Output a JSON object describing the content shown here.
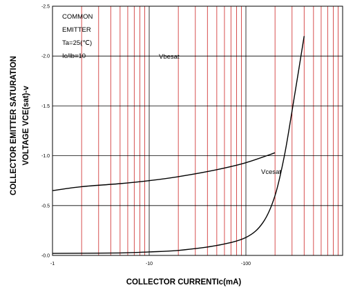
{
  "chart_data": {
    "type": "line",
    "title": "",
    "xlabel": "COLLECTOR CURRENTIc(mA)",
    "ylabel": "COLLECTOR EMITTER SATURATION",
    "ylabel_line2": "VOLTAGE VCE(sat)-v",
    "x_scale": "log",
    "xlim": [
      -1,
      -1000
    ],
    "ylim": [
      0,
      -2.5
    ],
    "x_ticks": [
      {
        "value": -1,
        "label": "-1"
      },
      {
        "value": -10,
        "label": "-10"
      },
      {
        "value": -100,
        "label": "-100"
      }
    ],
    "y_ticks": [
      {
        "value": 0,
        "label": "-0.0"
      },
      {
        "value": -0.5,
        "label": "-0.5"
      },
      {
        "value": -1.0,
        "label": "-1.0"
      },
      {
        "value": -1.5,
        "label": "-1.5"
      },
      {
        "value": -2.0,
        "label": "-2.0"
      },
      {
        "value": -2.5,
        "label": "-2.5"
      }
    ],
    "grid": true,
    "annotations": [
      "COMMON",
      "EMITTER",
      "Ta=25(℃)",
      "Ic/Ib=10"
    ],
    "series": [
      {
        "name": "Vbesat",
        "x": [
          -1,
          -2,
          -5,
          -10,
          -20,
          -50,
          -100,
          -200
        ],
        "y": [
          -0.65,
          -0.69,
          -0.72,
          -0.75,
          -0.79,
          -0.86,
          -0.93,
          -1.03
        ]
      },
      {
        "name": "Vcesat",
        "x": [
          -1,
          -5,
          -10,
          -20,
          -50,
          -100,
          -150,
          -200,
          -250,
          -300,
          -350,
          -400
        ],
        "y": [
          -0.02,
          -0.025,
          -0.035,
          -0.05,
          -0.1,
          -0.18,
          -0.33,
          -0.6,
          -1.0,
          -1.45,
          -1.85,
          -2.2
        ]
      }
    ]
  }
}
